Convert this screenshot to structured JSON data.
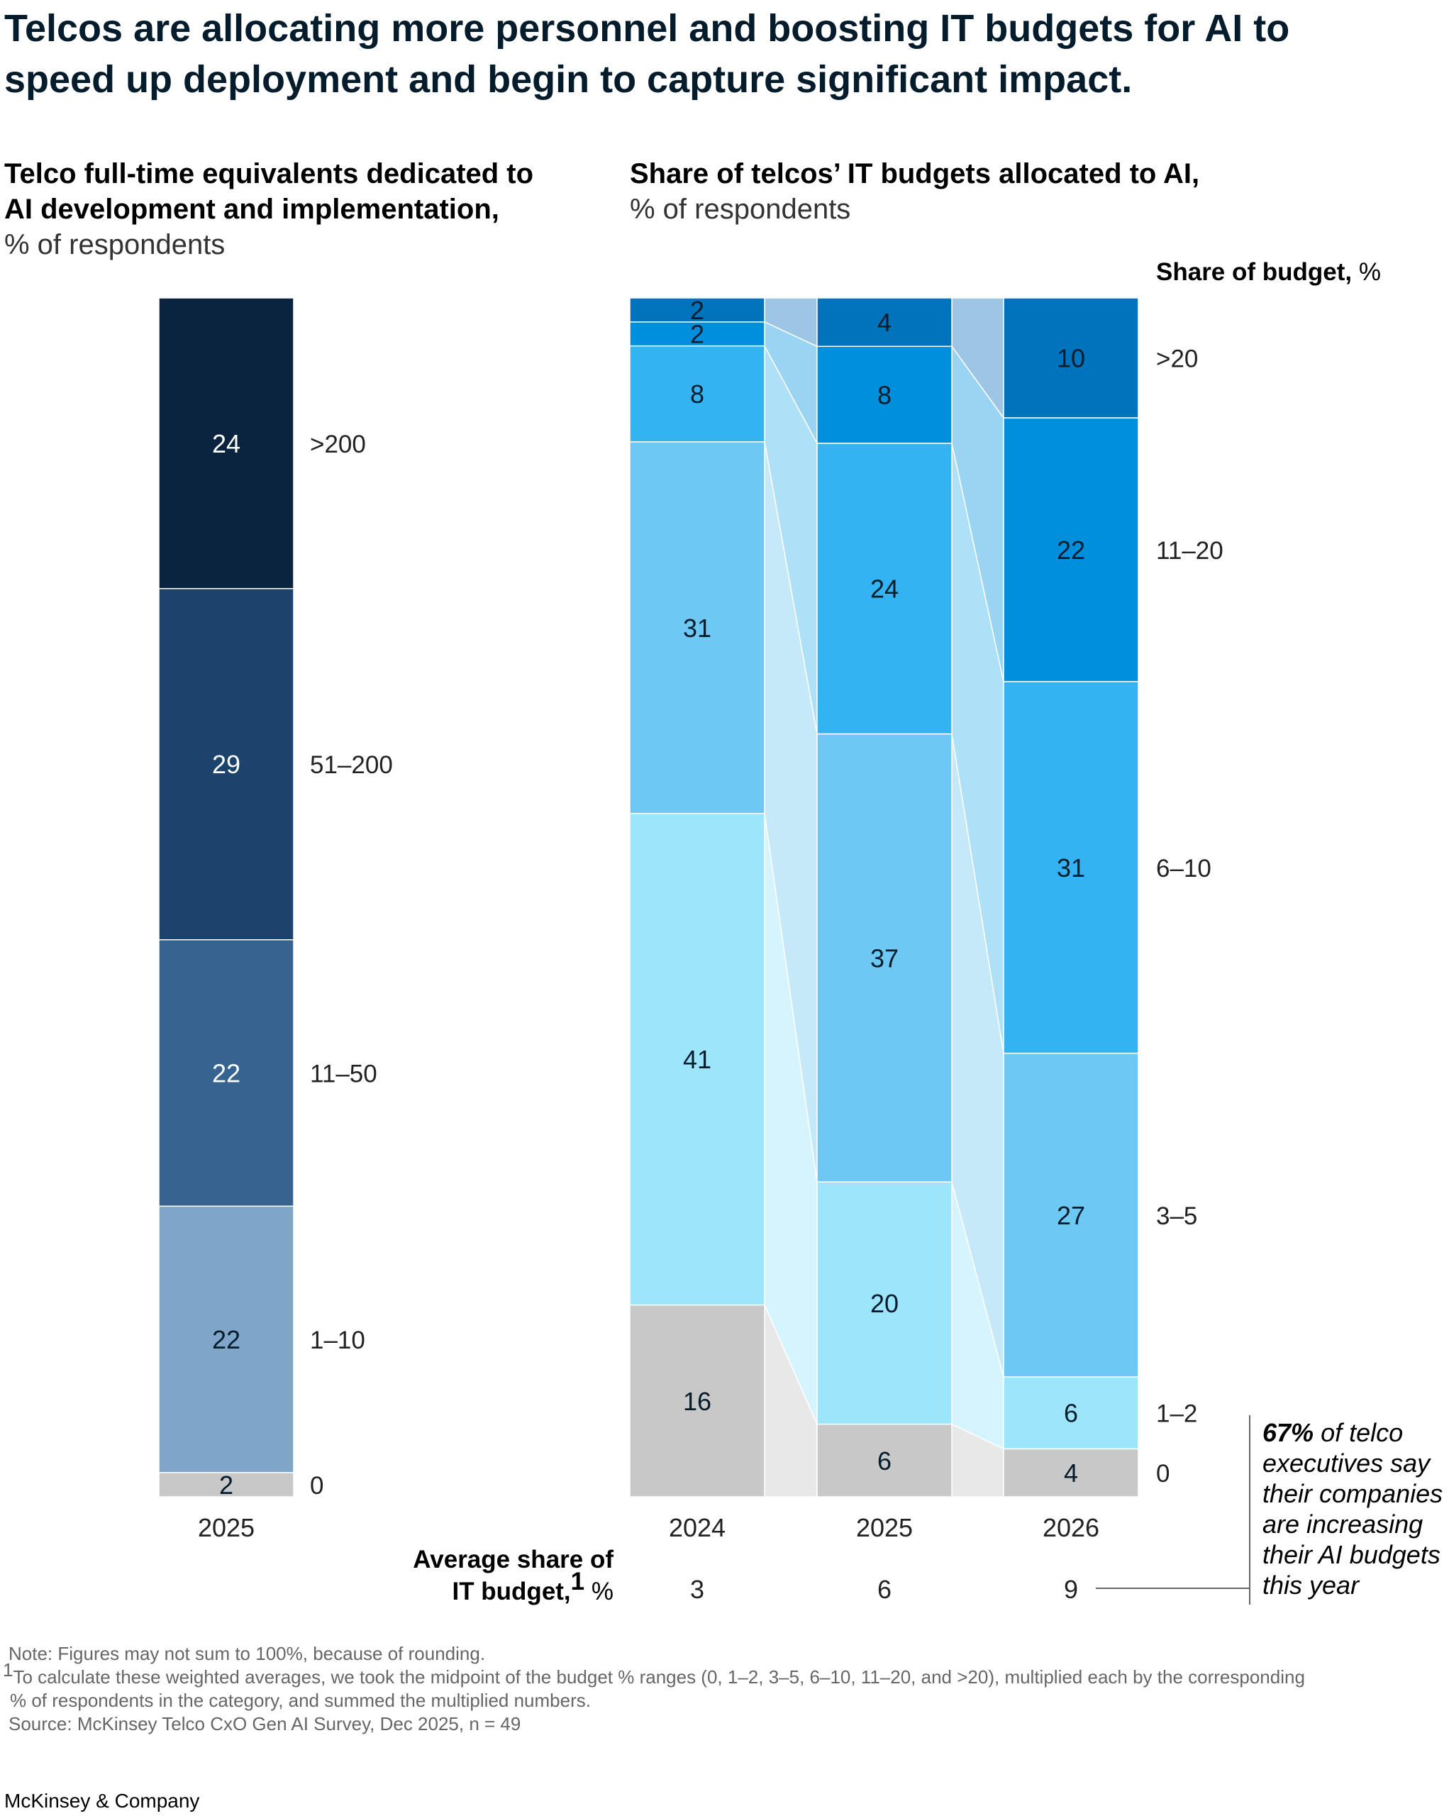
{
  "title_lines": [
    "Telcos are allocating more personnel and boosting IT budgets for AI to",
    "speed up deployment and begin to capture significant impact."
  ],
  "colors": {
    "fte": [
      "#c8c8c8",
      "#7fa6c9",
      "#376391",
      "#1d436c",
      "#0a2440"
    ],
    "budget": [
      "#c8c8c8",
      "#9ce5fb",
      "#6ec8f4",
      "#33b3f2",
      "#008fdc",
      "#0073bd"
    ],
    "ribbon": [
      "#e8e8e8",
      "#d6f4fd",
      "#c5e9f9",
      "#aee0f7",
      "#99d4f2",
      "#9cc6e4"
    ],
    "dark_text": "#051c2c"
  },
  "chart_data": [
    {
      "type": "stacked-bar",
      "title_bold_lines": [
        "Telco full-time equivalents dedicated to",
        "AI development and implementation,"
      ],
      "title_light": "% of respondents",
      "categories": [
        "2025"
      ],
      "series": [
        {
          "name": "0",
          "values": [
            2
          ]
        },
        {
          "name": "1–10",
          "values": [
            22
          ]
        },
        {
          "name": "11–50",
          "values": [
            22
          ]
        },
        {
          "name": "51–200",
          "values": [
            29
          ]
        },
        {
          "name": ">200",
          "values": [
            24
          ]
        }
      ]
    },
    {
      "type": "stacked-bar",
      "title_bold": "Share of telcos’ IT budgets allocated to AI,",
      "title_light": "% of respondents",
      "legend_title_bold": "Share of budget,",
      "legend_title_light": " %",
      "categories": [
        "2024",
        "2025",
        "2026"
      ],
      "series": [
        {
          "name": "0",
          "values": [
            16,
            6,
            4
          ]
        },
        {
          "name": "1–2",
          "values": [
            41,
            20,
            6
          ]
        },
        {
          "name": "3–5",
          "values": [
            31,
            37,
            27
          ]
        },
        {
          "name": "6–10",
          "values": [
            8,
            24,
            31
          ]
        },
        {
          "name": "11–20",
          "values": [
            2,
            8,
            22
          ]
        },
        {
          "name": ">20",
          "values": [
            2,
            4,
            10
          ]
        }
      ],
      "average": {
        "label_bold_1": "Average share of",
        "label_bold_2": "IT budget,",
        "label_sup": "1",
        "label_light": " %",
        "values": [
          3,
          6,
          9
        ]
      }
    }
  ],
  "callout": {
    "bold": "67%",
    "lines": [
      " of telco",
      "executives say",
      "their companies",
      "are increasing",
      "their AI budgets",
      "this year"
    ]
  },
  "notes": [
    "Note: Figures may not sum to 100%, because of rounding.",
    "To calculate these weighted averages, we took the midpoint of the budget % ranges (0, 1–2, 3–5, 6–10, 11–20, and >20), multiplied each by the corresponding",
    "% of respondents in the category, and summed the multiplied numbers.",
    "Source: McKinsey Telco CxO Gen AI Survey, Dec 2025, n = 49"
  ],
  "note_sup": "1",
  "brand": "McKinsey & Company"
}
